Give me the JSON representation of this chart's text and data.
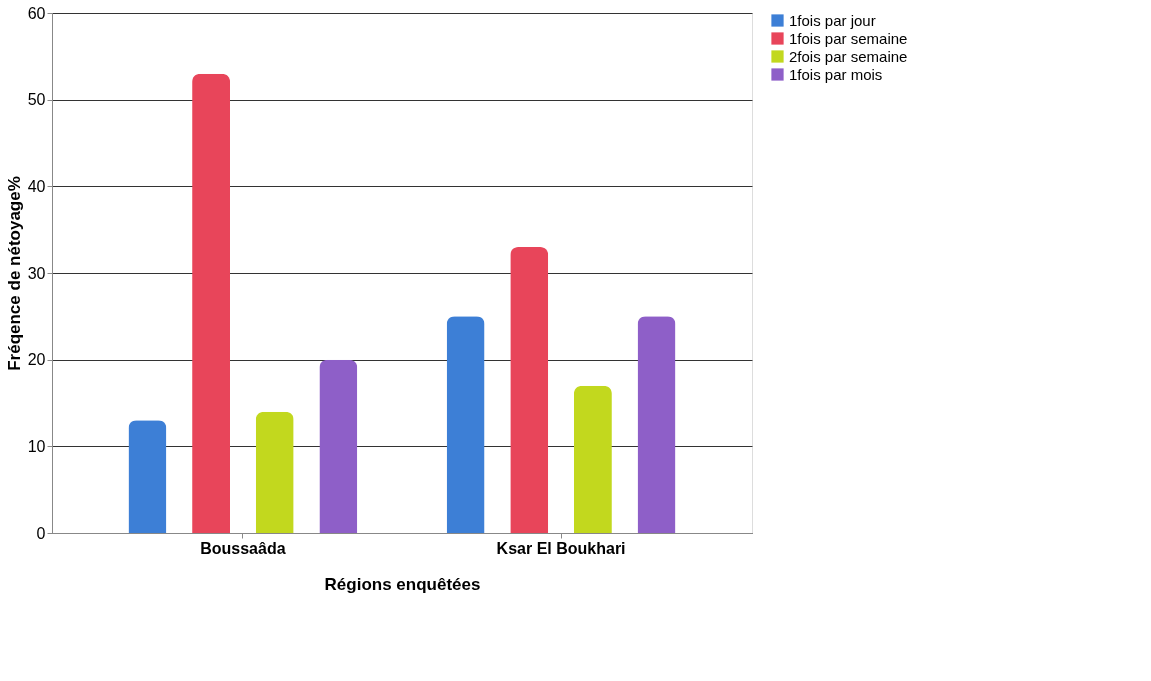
{
  "chart_data": {
    "type": "bar",
    "xlabel": "Régions enquêtées",
    "ylabel": "Fréqence de nétoyage%",
    "categories": [
      "Boussaâda",
      "Ksar El Boukhari"
    ],
    "series": [
      {
        "name": "1fois par jour",
        "color": "#3d7fd6",
        "values": [
          13,
          25
        ]
      },
      {
        "name": "1fois par semaine",
        "color": "#e8455a",
        "values": [
          53,
          33
        ]
      },
      {
        "name": "2fois par semaine",
        "color": "#c2d81e",
        "values": [
          14,
          17
        ]
      },
      {
        "name": "1fois par mois",
        "color": "#8e5fc8",
        "values": [
          20,
          25
        ]
      }
    ],
    "ylim": [
      0,
      60
    ],
    "yticks": [
      0,
      10,
      20,
      30,
      40,
      50,
      60
    ],
    "grid": "y",
    "legend": "right"
  }
}
